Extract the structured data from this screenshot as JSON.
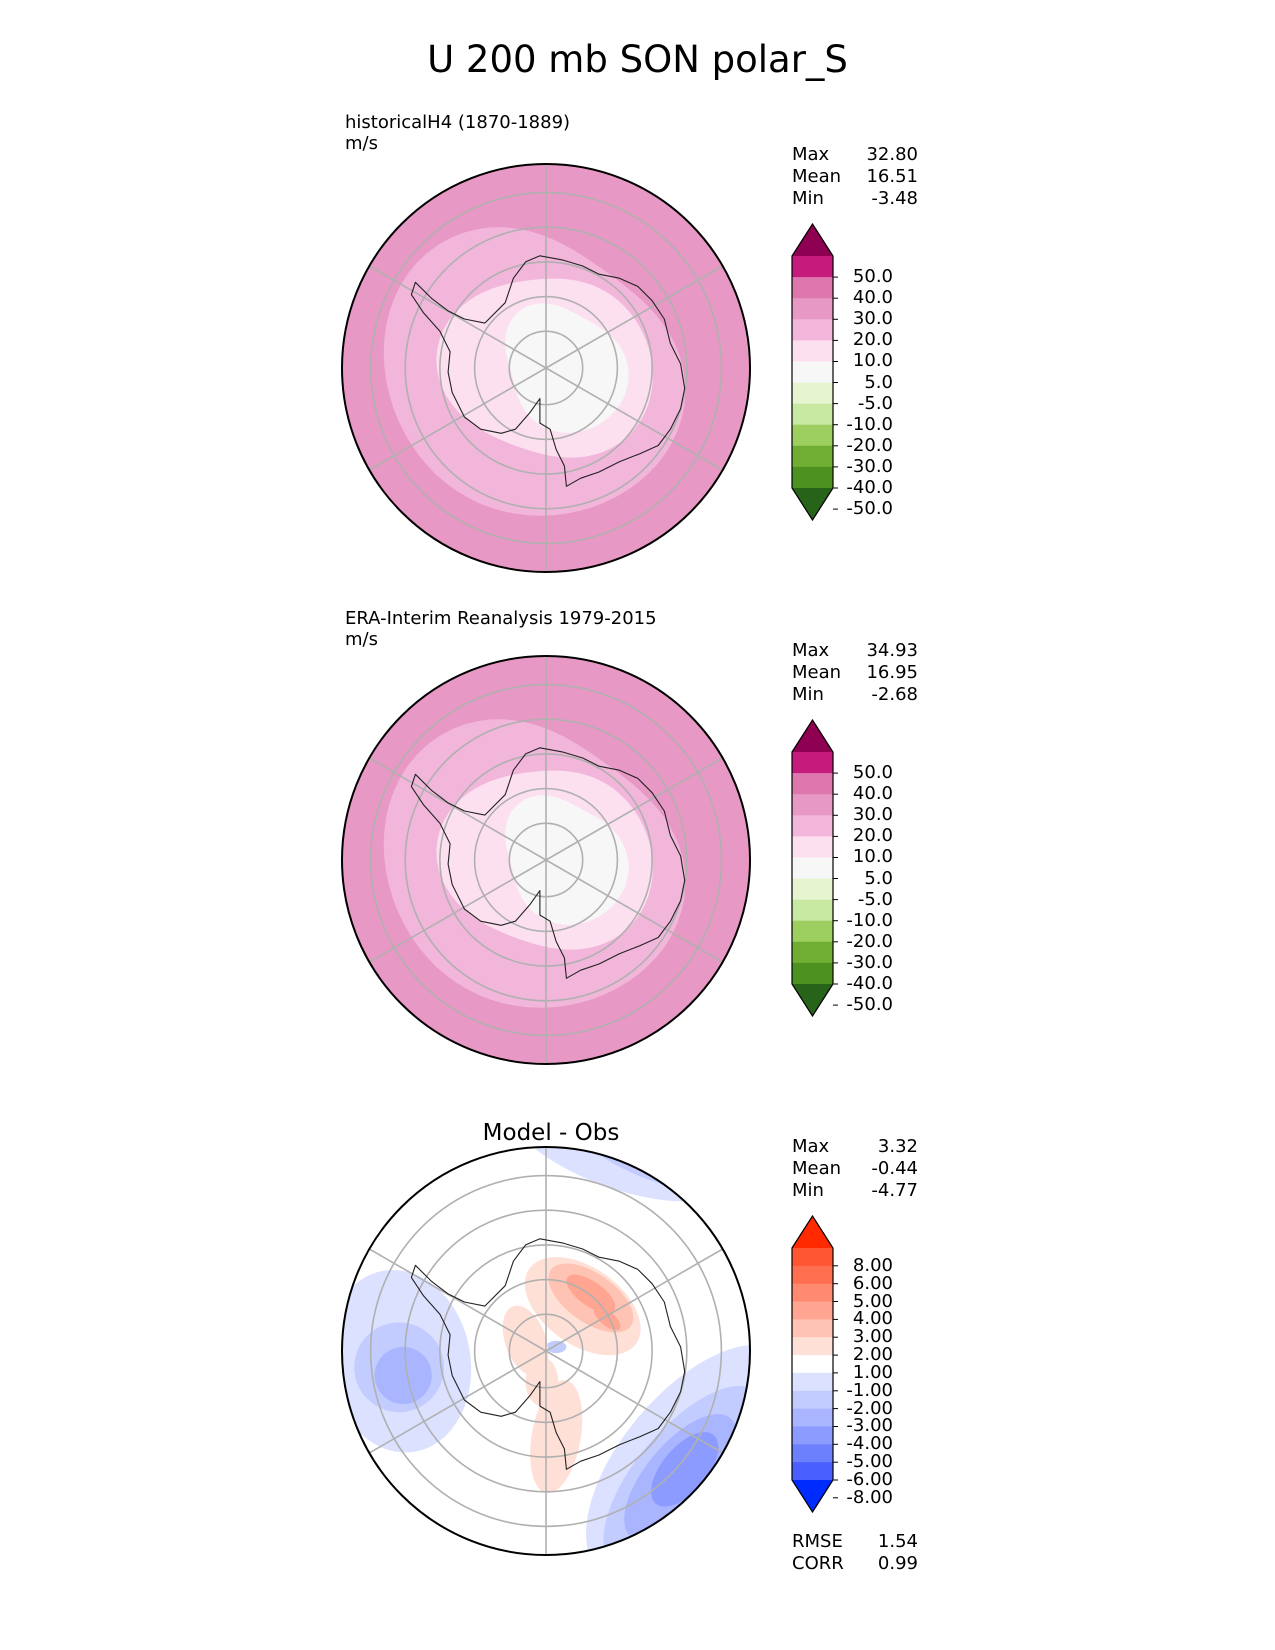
{
  "figure": {
    "title": "U 200 mb SON polar_S"
  },
  "panels": [
    {
      "title_line1": "historicalH4 (1870-1889)",
      "title_line2": "m/s",
      "stats": [
        {
          "label": "Max",
          "value": "32.80"
        },
        {
          "label": "Mean",
          "value": "16.51"
        },
        {
          "label": "Min",
          "value": "-3.48"
        }
      ],
      "colorbar": "main"
    },
    {
      "title_line1": "ERA-Interim Reanalysis 1979-2015",
      "title_line2": "m/s",
      "stats": [
        {
          "label": "Max",
          "value": "34.93"
        },
        {
          "label": "Mean",
          "value": "16.95"
        },
        {
          "label": "Min",
          "value": "-2.68"
        }
      ],
      "colorbar": "main"
    },
    {
      "title_line1": "Model - Obs",
      "title_line2": "",
      "stats": [
        {
          "label": "Max",
          "value": "3.32"
        },
        {
          "label": "Mean",
          "value": "-0.44"
        },
        {
          "label": "Min",
          "value": "-4.77"
        }
      ],
      "extra_stats": [
        {
          "label": "RMSE",
          "value": "1.54"
        },
        {
          "label": "CORR",
          "value": "0.99"
        }
      ],
      "colorbar": "diff"
    }
  ],
  "colorbars": {
    "main": {
      "ticks": [
        "50.0",
        "40.0",
        "30.0",
        "20.0",
        "10.0",
        "5.0",
        "-5.0",
        "-10.0",
        "-20.0",
        "-30.0",
        "-40.0",
        "-50.0"
      ],
      "colors_top_to_bottom": [
        "#8e0152",
        "#c51b7d",
        "#de77ae",
        "#e898c4",
        "#f1b6da",
        "#fde0ef",
        "#f7f7f7",
        "#e6f5d0",
        "#c8e9a2",
        "#9dcf60",
        "#6fae33",
        "#4d9221",
        "#276419"
      ]
    },
    "diff": {
      "ticks": [
        "8.00",
        "6.00",
        "5.00",
        "4.00",
        "3.00",
        "2.00",
        "1.00",
        "-1.00",
        "-2.00",
        "-3.00",
        "-4.00",
        "-5.00",
        "-6.00",
        "-8.00"
      ],
      "colors_top_to_bottom": [
        "#ff2a00",
        "#ff5533",
        "#ff6e4f",
        "#ff8a70",
        "#ffa591",
        "#ffc3b3",
        "#ffe0d6",
        "#ffffff",
        "#dbe1ff",
        "#c2ccff",
        "#a9b6ff",
        "#8c9bff",
        "#6c7ffc",
        "#4a5fff",
        "#002bff"
      ]
    }
  },
  "chart_data": [
    {
      "type": "heatmap",
      "projection": "south polar stereographic",
      "title": "historicalH4 (1870-1889)",
      "units": "m/s",
      "variable": "U 200 mb SON",
      "levels": [
        -50,
        -40,
        -30,
        -20,
        -10,
        -5,
        5,
        10,
        20,
        30,
        40,
        50
      ],
      "zonal_band_values": [
        {
          "colat_range": [
            0,
            10
          ],
          "value_range": [
            -5,
            5
          ]
        },
        {
          "colat_range": [
            10,
            17
          ],
          "value_range": [
            5,
            10
          ]
        },
        {
          "colat_range": [
            17,
            27
          ],
          "value_range": [
            10,
            20
          ]
        },
        {
          "colat_range": [
            27,
            55
          ],
          "value_range": [
            20,
            30
          ]
        },
        {
          "colat_range": [
            40,
            55
          ],
          "value_range": [
            30,
            40
          ],
          "sector": "northeast edge"
        }
      ],
      "stats": {
        "max": 32.8,
        "mean": 16.51,
        "min": -3.48
      }
    },
    {
      "type": "heatmap",
      "projection": "south polar stereographic",
      "title": "ERA-Interim Reanalysis 1979-2015",
      "units": "m/s",
      "levels": [
        -50,
        -40,
        -30,
        -20,
        -10,
        -5,
        5,
        10,
        20,
        30,
        40,
        50
      ],
      "zonal_band_values": [
        {
          "colat_range": [
            0,
            11
          ],
          "value_range": [
            -5,
            5
          ]
        },
        {
          "colat_range": [
            11,
            18
          ],
          "value_range": [
            5,
            10
          ]
        },
        {
          "colat_range": [
            18,
            28
          ],
          "value_range": [
            10,
            20
          ]
        },
        {
          "colat_range": [
            28,
            55
          ],
          "value_range": [
            20,
            30
          ]
        },
        {
          "colat_range": [
            38,
            55
          ],
          "value_range": [
            30,
            40
          ],
          "sector": "northeast edge"
        }
      ],
      "stats": {
        "max": 34.93,
        "mean": 16.95,
        "min": -2.68
      }
    },
    {
      "type": "heatmap",
      "projection": "south polar stereographic",
      "title": "Model - Obs",
      "levels": [
        -8,
        -6,
        -5,
        -4,
        -3,
        -2,
        -1,
        1,
        2,
        3,
        4,
        5,
        6,
        8
      ],
      "features": [
        {
          "region": "east Antarctica (northeast of pole)",
          "value_range": [
            1,
            4
          ]
        },
        {
          "region": "south of pole",
          "value_range": [
            1,
            2
          ]
        },
        {
          "region": "western sector edge",
          "value_range": [
            -3,
            -1
          ]
        },
        {
          "region": "southeast edge",
          "value_range": [
            -5,
            -1
          ]
        },
        {
          "region": "northern edge",
          "value_range": [
            -2,
            -1
          ]
        }
      ],
      "stats": {
        "max": 3.32,
        "mean": -0.44,
        "min": -4.77,
        "rmse": 1.54,
        "corr": 0.99
      }
    }
  ]
}
